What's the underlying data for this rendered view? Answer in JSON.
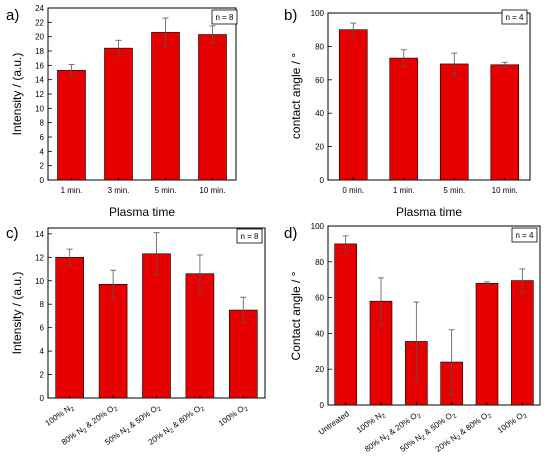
{
  "colors": {
    "bar": "#e60000",
    "bar_stroke": "#000000",
    "error": "#555555"
  },
  "chart_data": [
    {
      "type": "bar",
      "panel": "a)",
      "n_label": "n = 8",
      "xlabel": "Plasma time",
      "ylabel": "Intensity / (a.u.)",
      "ylim": [
        0,
        24
      ],
      "yticks": [
        0,
        2,
        4,
        6,
        8,
        10,
        12,
        14,
        16,
        18,
        20,
        22,
        24
      ],
      "categories": [
        "1 min.",
        "3 min.",
        "5 min.",
        "10 min."
      ],
      "values": [
        15.3,
        18.4,
        20.6,
        20.3
      ],
      "errors": [
        0.8,
        1.1,
        2.0,
        1.2
      ],
      "label_rotation": 0,
      "grid": false
    },
    {
      "type": "bar",
      "panel": "b)",
      "n_label": "n = 4",
      "xlabel": "Plasma time",
      "ylabel": "contact angle / °",
      "ylim": [
        0,
        100
      ],
      "yticks": [
        0,
        20,
        40,
        60,
        80,
        100
      ],
      "categories": [
        "0 min.",
        "1 min.",
        "5 min.",
        "10 min."
      ],
      "values": [
        90,
        73,
        69.5,
        69
      ],
      "errors": [
        4,
        5,
        6.5,
        1.5
      ],
      "label_rotation": 0,
      "grid": false
    },
    {
      "type": "bar",
      "panel": "c)",
      "n_label": "n = 8",
      "xlabel": "",
      "ylabel": "Intensity / (a.u.)",
      "ylim": [
        0,
        14.5
      ],
      "yticks": [
        0,
        2,
        4,
        6,
        8,
        10,
        12,
        14
      ],
      "categories": [
        "100% N2",
        "80% N2 & 20% O2",
        "50% N2 & 50% O2",
        "20% N2 & 80% O2",
        "100% O2"
      ],
      "values": [
        12.0,
        9.7,
        12.3,
        10.6,
        7.5
      ],
      "errors": [
        0.7,
        1.2,
        1.8,
        1.6,
        1.1
      ],
      "label_rotation": -35,
      "grid": false
    },
    {
      "type": "bar",
      "panel": "d)",
      "n_label": "n = 4",
      "xlabel": "",
      "ylabel": "Contact angle / °",
      "ylim": [
        0,
        100
      ],
      "yticks": [
        0,
        20,
        40,
        60,
        80,
        100
      ],
      "categories": [
        "Untreated",
        "100% N2",
        "80% N2 & 20% O2",
        "50% N2 & 50% O2",
        "20% N2 & 80% O2",
        "100% O2"
      ],
      "values": [
        90,
        58,
        35.5,
        24,
        68,
        69.5
      ],
      "errors": [
        4.5,
        13,
        22,
        18,
        0.8,
        6.5
      ],
      "label_rotation": -35,
      "grid": false
    }
  ]
}
